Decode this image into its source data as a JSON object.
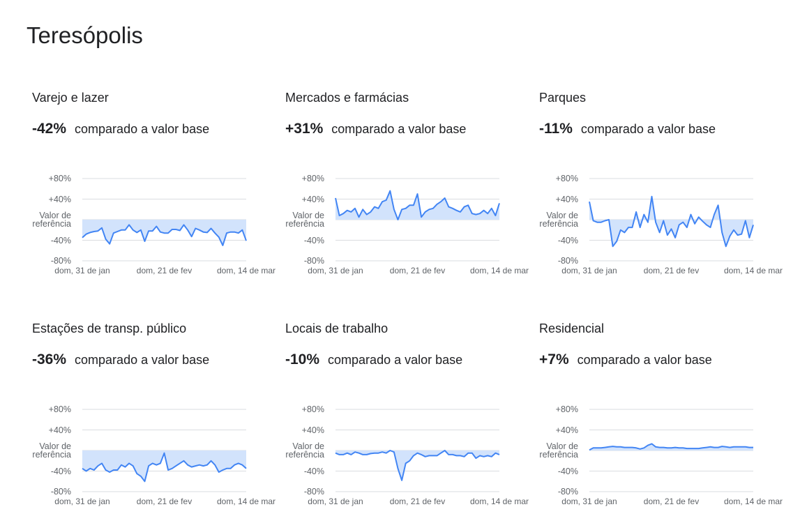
{
  "title": "Teresópolis",
  "chart_data": [
    {
      "type": "line",
      "title": "Varejo e lazer",
      "change": "-42%",
      "change_text": "comparado a valor base",
      "categories": [
        "dom, 31 de jan",
        null,
        null,
        null,
        null,
        null,
        null,
        null,
        null,
        null,
        null,
        null,
        null,
        null,
        null,
        null,
        null,
        null,
        null,
        null,
        null,
        "dom, 21 de fev",
        null,
        null,
        null,
        null,
        null,
        null,
        null,
        null,
        null,
        null,
        null,
        null,
        null,
        null,
        null,
        null,
        null,
        null,
        null,
        null,
        "dom, 14 de mar"
      ],
      "values": [
        -35,
        -28,
        -25,
        -23,
        -22,
        -16,
        -38,
        -47,
        -26,
        -23,
        -20,
        -20,
        -10,
        -20,
        -25,
        -20,
        -42,
        -22,
        -22,
        -13,
        -24,
        -26,
        -26,
        -19,
        -19,
        -21,
        -10,
        -20,
        -33,
        -17,
        -20,
        -24,
        -25,
        -17,
        -26,
        -34,
        -50,
        -26,
        -24,
        -24,
        -26,
        -20,
        -41
      ],
      "color": "#4285f4",
      "fill_color": "#d2e3fc",
      "ylim": [
        -80,
        80
      ],
      "yticks": [
        {
          "value": 80,
          "label": "+80%"
        },
        {
          "value": 40,
          "label": "+40%"
        },
        {
          "value": 0,
          "label": "Valor de referência"
        },
        {
          "value": -40,
          "label": "-40%"
        },
        {
          "value": -80,
          "label": "-80%"
        }
      ],
      "grid": true
    },
    {
      "type": "line",
      "title": "Mercados e farmácias",
      "change": "+31%",
      "change_text": "comparado a valor base",
      "categories": [
        "dom, 31 de jan",
        null,
        null,
        null,
        null,
        null,
        null,
        null,
        null,
        null,
        null,
        null,
        null,
        null,
        null,
        null,
        null,
        null,
        null,
        null,
        null,
        "dom, 21 de fev",
        null,
        null,
        null,
        null,
        null,
        null,
        null,
        null,
        null,
        null,
        null,
        null,
        null,
        null,
        null,
        null,
        null,
        null,
        null,
        null,
        "dom, 14 de mar"
      ],
      "values": [
        42,
        8,
        12,
        18,
        15,
        22,
        5,
        20,
        10,
        15,
        25,
        22,
        35,
        38,
        56,
        20,
        0,
        20,
        22,
        28,
        28,
        50,
        5,
        15,
        20,
        22,
        30,
        35,
        42,
        25,
        22,
        18,
        15,
        25,
        28,
        12,
        10,
        12,
        18,
        12,
        22,
        8,
        32
      ],
      "color": "#4285f4",
      "fill_color": "#d2e3fc",
      "ylim": [
        -80,
        80
      ],
      "yticks": [
        {
          "value": 80,
          "label": "+80%"
        },
        {
          "value": 40,
          "label": "+40%"
        },
        {
          "value": 0,
          "label": "Valor de referência"
        },
        {
          "value": -40,
          "label": "-40%"
        },
        {
          "value": -80,
          "label": "-80%"
        }
      ],
      "grid": true
    },
    {
      "type": "line",
      "title": "Parques",
      "change": "-11%",
      "change_text": "comparado a valor base",
      "categories": [
        "dom, 31 de jan",
        null,
        null,
        null,
        null,
        null,
        null,
        null,
        null,
        null,
        null,
        null,
        null,
        null,
        null,
        null,
        null,
        null,
        null,
        null,
        null,
        "dom, 21 de fev",
        null,
        null,
        null,
        null,
        null,
        null,
        null,
        null,
        null,
        null,
        null,
        null,
        null,
        null,
        null,
        null,
        null,
        null,
        null,
        null,
        "dom, 14 de mar"
      ],
      "values": [
        35,
        -2,
        -5,
        -5,
        -2,
        0,
        -52,
        -42,
        -20,
        -25,
        -15,
        -15,
        15,
        -15,
        10,
        -5,
        45,
        -5,
        -25,
        -2,
        -30,
        -18,
        -35,
        -10,
        -5,
        -15,
        10,
        -8,
        5,
        -3,
        -10,
        -15,
        10,
        28,
        -25,
        -52,
        -32,
        -20,
        -30,
        -28,
        -2,
        -35,
        -10
      ],
      "color": "#4285f4",
      "fill_color": "#d2e3fc",
      "ylim": [
        -80,
        80
      ],
      "yticks": [
        {
          "value": 80,
          "label": "+80%"
        },
        {
          "value": 40,
          "label": "+40%"
        },
        {
          "value": 0,
          "label": "Valor de referência"
        },
        {
          "value": -40,
          "label": "-40%"
        },
        {
          "value": -80,
          "label": "-80%"
        }
      ],
      "grid": true
    },
    {
      "type": "line",
      "title": "Estações de transp. público",
      "change": "-36%",
      "change_text": "comparado a valor base",
      "categories": [
        "dom, 31 de jan",
        null,
        null,
        null,
        null,
        null,
        null,
        null,
        null,
        null,
        null,
        null,
        null,
        null,
        null,
        null,
        null,
        null,
        null,
        null,
        null,
        "dom, 21 de fev",
        null,
        null,
        null,
        null,
        null,
        null,
        null,
        null,
        null,
        null,
        null,
        null,
        null,
        null,
        null,
        null,
        null,
        null,
        null,
        null,
        "dom, 14 de mar"
      ],
      "values": [
        -35,
        -40,
        -35,
        -38,
        -30,
        -25,
        -38,
        -42,
        -38,
        -38,
        -28,
        -32,
        -25,
        -30,
        -45,
        -50,
        -60,
        -30,
        -25,
        -28,
        -25,
        -5,
        -38,
        -35,
        -30,
        -25,
        -20,
        -28,
        -32,
        -30,
        -28,
        -30,
        -28,
        -20,
        -28,
        -42,
        -38,
        -35,
        -35,
        -28,
        -25,
        -28,
        -35
      ],
      "color": "#4285f4",
      "fill_color": "#d2e3fc",
      "ylim": [
        -80,
        80
      ],
      "yticks": [
        {
          "value": 80,
          "label": "+80%"
        },
        {
          "value": 40,
          "label": "+40%"
        },
        {
          "value": 0,
          "label": "Valor de referência"
        },
        {
          "value": -40,
          "label": "-40%"
        },
        {
          "value": -80,
          "label": "-80%"
        }
      ],
      "grid": true
    },
    {
      "type": "line",
      "title": "Locais de trabalho",
      "change": "-10%",
      "change_text": "comparado a valor base",
      "categories": [
        "dom, 31 de jan",
        null,
        null,
        null,
        null,
        null,
        null,
        null,
        null,
        null,
        null,
        null,
        null,
        null,
        null,
        null,
        null,
        null,
        null,
        null,
        null,
        "dom, 21 de fev",
        null,
        null,
        null,
        null,
        null,
        null,
        null,
        null,
        null,
        null,
        null,
        null,
        null,
        null,
        null,
        null,
        null,
        null,
        null,
        null,
        "dom, 14 de mar"
      ],
      "values": [
        -5,
        -8,
        -8,
        -5,
        -8,
        -3,
        -5,
        -8,
        -8,
        -6,
        -5,
        -5,
        -3,
        -5,
        0,
        -3,
        -35,
        -58,
        -25,
        -20,
        -10,
        -5,
        -8,
        -12,
        -10,
        -10,
        -10,
        -5,
        0,
        -8,
        -8,
        -10,
        -10,
        -12,
        -5,
        -5,
        -15,
        -10,
        -12,
        -10,
        -12,
        -5,
        -8
      ],
      "color": "#4285f4",
      "fill_color": "#d2e3fc",
      "ylim": [
        -80,
        80
      ],
      "yticks": [
        {
          "value": 80,
          "label": "+80%"
        },
        {
          "value": 40,
          "label": "+40%"
        },
        {
          "value": 0,
          "label": "Valor de referência"
        },
        {
          "value": -40,
          "label": "-40%"
        },
        {
          "value": -80,
          "label": "-80%"
        }
      ],
      "grid": true
    },
    {
      "type": "line",
      "title": "Residencial",
      "change": "+7%",
      "change_text": "comparado a valor base",
      "categories": [
        "dom, 31 de jan",
        null,
        null,
        null,
        null,
        null,
        null,
        null,
        null,
        null,
        null,
        null,
        null,
        null,
        null,
        null,
        null,
        null,
        null,
        null,
        null,
        "dom, 21 de fev",
        null,
        null,
        null,
        null,
        null,
        null,
        null,
        null,
        null,
        null,
        null,
        null,
        null,
        null,
        null,
        null,
        null,
        null,
        null,
        null,
        "dom, 14 de mar"
      ],
      "values": [
        1,
        5,
        5,
        5,
        6,
        7,
        8,
        7,
        7,
        6,
        6,
        6,
        5,
        3,
        5,
        10,
        13,
        7,
        6,
        6,
        5,
        5,
        6,
        5,
        5,
        4,
        4,
        4,
        4,
        5,
        6,
        7,
        6,
        6,
        8,
        7,
        6,
        7,
        7,
        7,
        7,
        6,
        6
      ],
      "color": "#4285f4",
      "fill_color": "#d2e3fc",
      "ylim": [
        -80,
        80
      ],
      "yticks": [
        {
          "value": 80,
          "label": "+80%"
        },
        {
          "value": 40,
          "label": "+40%"
        },
        {
          "value": 0,
          "label": "Valor de referência"
        },
        {
          "value": -40,
          "label": "-40%"
        },
        {
          "value": -80,
          "label": "-80%"
        }
      ],
      "grid": true
    }
  ]
}
